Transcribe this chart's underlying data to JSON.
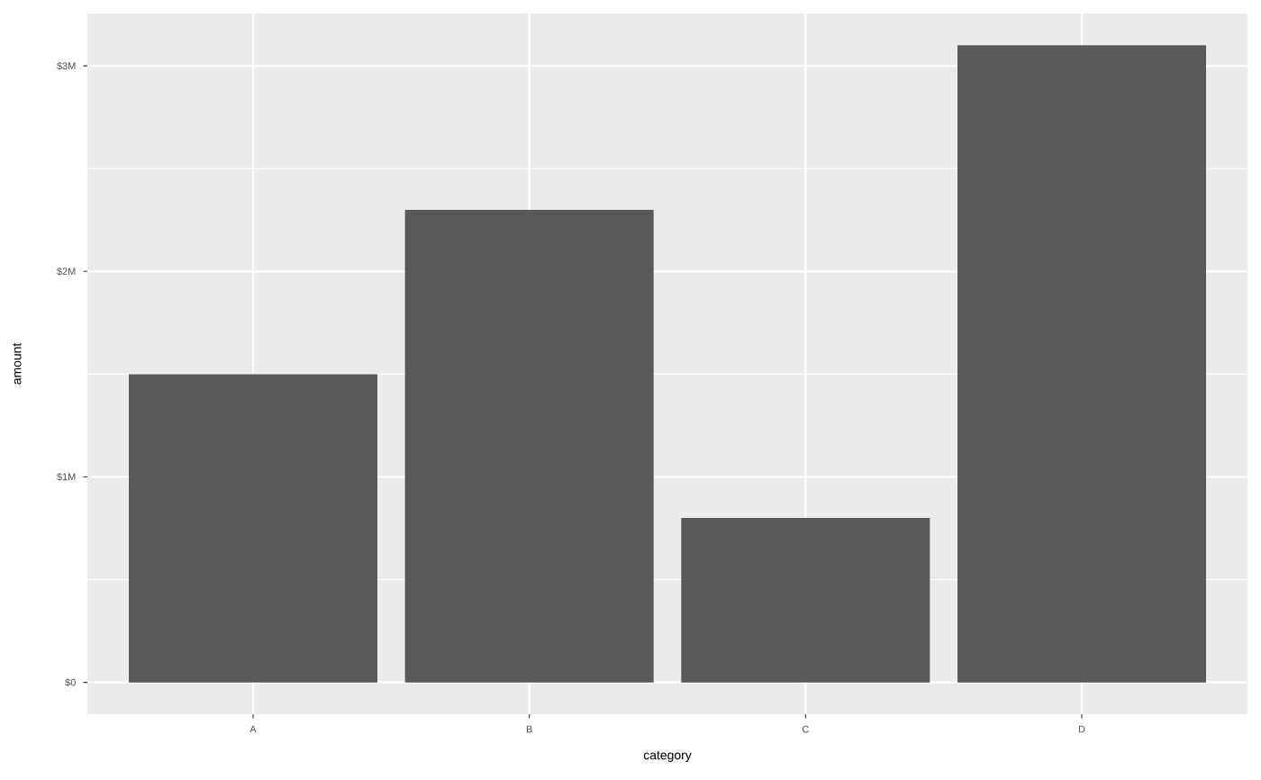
{
  "chart_data": {
    "type": "bar",
    "xlabel": "category",
    "ylabel": "amount",
    "categories": [
      "A",
      "B",
      "C",
      "D"
    ],
    "values": [
      1.5,
      2.3,
      0.8,
      3.1
    ],
    "color": "#595959",
    "ylim": [
      -0.155,
      3.255
    ],
    "yticks": [
      {
        "value": 0,
        "label": "$0"
      },
      {
        "value": 1,
        "label": "$1M"
      },
      {
        "value": 2,
        "label": "$2M"
      },
      {
        "value": 3,
        "label": "$3M"
      }
    ],
    "grid": true
  }
}
